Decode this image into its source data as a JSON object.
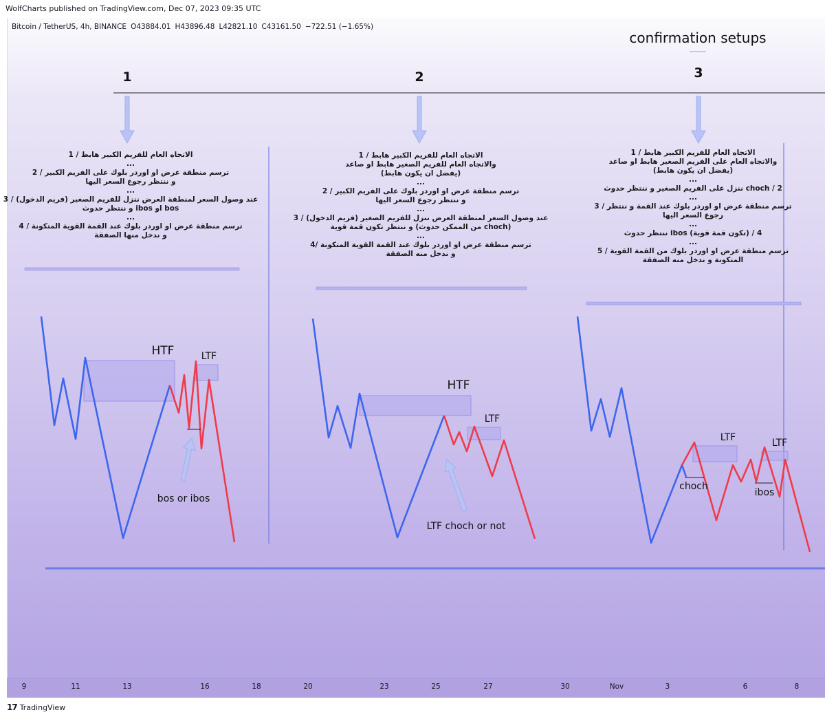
{
  "header": {
    "published": "WolfCharts published on TradingView.com, Dec 07, 2023 09:35 UTC",
    "symbol": "Bitcoin / TetherUS, 4h, BINANCE",
    "open": "O43884.01",
    "high": "H43896.48",
    "low": "L42821.10",
    "close": "C43161.50",
    "change": "−722.51 (−1.65%)"
  },
  "footer": {
    "logo": "17",
    "brand": "TradingView"
  },
  "colors": {
    "bull": "#3d66ee",
    "bear": "#ef3b4b",
    "zone": "#b0aaee",
    "arrow": "#b9c3f5",
    "divider": "#5b6fe0"
  },
  "chart_data": {
    "type": "annotated-price-sketch",
    "title": "confirmation setups",
    "x_ticks": [
      "9",
      "11",
      "13",
      "16",
      "18",
      "20",
      "23",
      "25",
      "27",
      "30",
      "Nov",
      "3",
      "6",
      "8"
    ],
    "setups": [
      {
        "number": "1",
        "notes": [
          "الاتجاه العام للفريم الكبير هابط / 1",
          "...",
          "ترسم منطقة عرض او اوردر بلوك على الفريم الكبير / 2",
          "و ننتظر رجوع السعر اليها",
          "...",
          "عند وصول السعر لمنطقة العرض ننزل للفريم الصغير (فريم الدخول) / 3",
          "و ننتظر حدوث ibos او bos",
          "...",
          "ترسم منطقة عرض او اوردر بلوك عند القمة القوية المتكونة / 4",
          "و ندخل منها الصفقة"
        ],
        "labels": {
          "htf": "HTF",
          "ltf": "LTF",
          "annotation": "bos or ibos"
        },
        "bull_path": [
          [
            0,
            80
          ],
          [
            1,
            40
          ],
          [
            2,
            58
          ],
          [
            3,
            30
          ],
          [
            4,
            67
          ],
          [
            5,
            0
          ],
          [
            6,
            67
          ]
        ],
        "bear_path": [
          [
            6,
            67
          ],
          [
            7,
            60
          ],
          [
            8,
            72
          ],
          [
            9,
            58
          ],
          [
            10,
            78
          ],
          [
            11,
            60
          ],
          [
            12,
            0
          ]
        ]
      },
      {
        "number": "2",
        "notes": [
          "الاتجاه العام للفريم الكبير هابط / 1",
          "والاتجاه العام للفريم الصغير هابط او صاعد",
          "(يفضل ان يكون هابط)",
          "...",
          "ترسم منطقة عرض او اوردر بلوك على الفريم الكبير / 2",
          "و ننتظر رجوع السعر اليها",
          "...",
          "عند وصول السعر لمنطقة العرض ننزل للفريم الصغير (فريم الدخول) / 3",
          "و ننتظر تكون قمة قوية (من الممكن حدوث choch)",
          "...",
          "ترسم منطقة عرض او اوردر بلوك عند القمة القوية المتكونة /4",
          "و ندخل منه الصفقة"
        ],
        "labels": {
          "htf": "HTF",
          "ltf": "LTF",
          "annotation": "LTF choch or not"
        }
      },
      {
        "number": "3",
        "notes": [
          "الاتجاه العام للفريم الكبير هابط / 1",
          "والاتجاه العام على الفريم الصغير هابط او صاعد",
          "(يفضل ان يكون هابط)",
          "...",
          "ننزل على الفريم الصغير و ننتظر حدوث choch / 2",
          "...",
          "ترسم منطقة عرض او اوردر بلوك عند القمة و ننتظر / 3",
          "رجوع السعر اليها",
          "...",
          "ننتظر حدوث ibos (تكون قمة قوية) / 4",
          "...",
          "ترسم منطقة عرض او اوردر بلوك من القمة القوية / 5",
          "المتكونة و ندخل منه الصفقة"
        ],
        "labels": {
          "ltf1": "LTF",
          "ltf2": "LTF",
          "choch": "choch",
          "ibos": "ibos"
        }
      }
    ]
  }
}
